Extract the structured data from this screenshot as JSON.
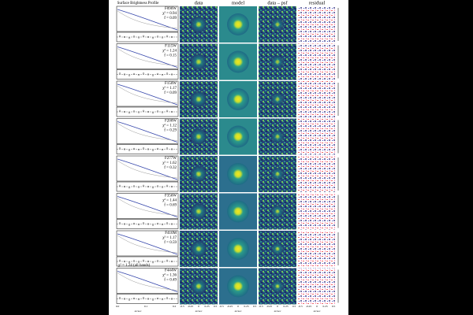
{
  "figure": {
    "column_titles": [
      "Surface Brightness Profile",
      "data",
      "model",
      "data – psf",
      "residual"
    ],
    "x_axis_label": "arcsec",
    "x_ticks": [
      "-0.5",
      "-0.25",
      "0",
      "0.25",
      "0.5"
    ],
    "profile_x_ticks": [
      "0.0",
      "0.1",
      "0.2"
    ],
    "overall_fit": "χ² = 1.24 (all bands)",
    "rows": [
      {
        "band": "F090W",
        "chi2": "χ² = 0.94",
        "fsd": "f = 0.09"
      },
      {
        "band": "F115W",
        "chi2": "χ² = 1.24",
        "fsd": "f = 0.15"
      },
      {
        "band": "F150W",
        "chi2": "χ² = 1.17",
        "fsd": "f = 0.09"
      },
      {
        "band": "F200W",
        "chi2": "χ² = 1.12",
        "fsd": "f = 0.29"
      },
      {
        "band": "F277W",
        "chi2": "χ² = 1.62",
        "fsd": "f = 0.32"
      },
      {
        "band": "F356W",
        "chi2": "χ² = 1.44",
        "fsd": "f = 0.69"
      },
      {
        "band": "F410M",
        "chi2": "χ² = 1.17",
        "fsd": "f = 0.59"
      },
      {
        "band": "F444W",
        "chi2": "χ² = 1.36",
        "fsd": "f = 0.49"
      }
    ]
  }
}
